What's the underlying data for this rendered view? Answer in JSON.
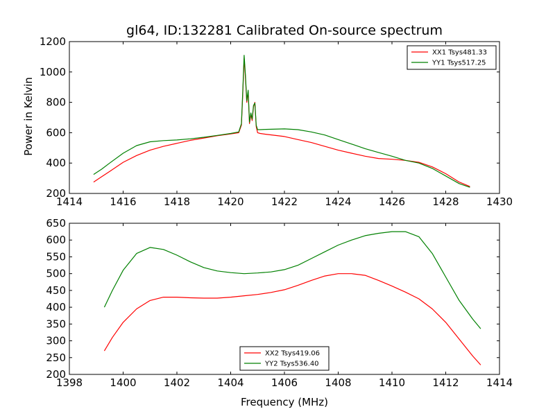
{
  "title": "gl64, ID:132281 Calibrated On-source spectrum",
  "chart_data": [
    {
      "type": "line",
      "ylabel": "Power in Kelvin",
      "xlabel": "",
      "xlim": [
        1414,
        1430
      ],
      "ylim": [
        200,
        1200
      ],
      "xticks": [
        "1414",
        "1416",
        "1418",
        "1420",
        "1422",
        "1424",
        "1426",
        "1428",
        "1430"
      ],
      "yticks": [
        "200",
        "400",
        "600",
        "800",
        "1000",
        "1200"
      ],
      "legend_position": "top-right",
      "series": [
        {
          "name": "XX1 Tsys481.33",
          "color": "#ff0000",
          "x": [
            1414.9,
            1415.2,
            1415.5,
            1416.0,
            1416.5,
            1417.0,
            1417.5,
            1418.0,
            1418.5,
            1419.0,
            1419.5,
            1420.0,
            1420.3,
            1420.4,
            1420.45,
            1420.5,
            1420.55,
            1420.6,
            1420.65,
            1420.7,
            1420.75,
            1420.8,
            1420.85,
            1420.9,
            1420.95,
            1421.0,
            1421.1,
            1421.3,
            1422.0,
            1422.5,
            1423.0,
            1423.5,
            1424.0,
            1424.5,
            1425.0,
            1425.5,
            1426.0,
            1426.5,
            1427.0,
            1427.5,
            1428.0,
            1428.5,
            1428.9
          ],
          "y": [
            275,
            310,
            345,
            405,
            450,
            485,
            510,
            530,
            550,
            565,
            580,
            592,
            600,
            650,
            850,
            1090,
            960,
            800,
            870,
            660,
            720,
            680,
            770,
            800,
            640,
            600,
            595,
            590,
            575,
            555,
            535,
            510,
            485,
            465,
            445,
            430,
            425,
            418,
            405,
            375,
            330,
            275,
            245
          ]
        },
        {
          "name": "YY1 Tsys517.25",
          "color": "#008000",
          "x": [
            1414.9,
            1415.2,
            1415.5,
            1416.0,
            1416.5,
            1417.0,
            1417.5,
            1418.0,
            1418.5,
            1419.0,
            1419.5,
            1420.0,
            1420.3,
            1420.4,
            1420.45,
            1420.5,
            1420.55,
            1420.6,
            1420.65,
            1420.7,
            1420.75,
            1420.8,
            1420.85,
            1420.9,
            1420.95,
            1421.0,
            1421.1,
            1421.3,
            1422.0,
            1422.5,
            1423.0,
            1423.5,
            1424.0,
            1424.5,
            1425.0,
            1425.5,
            1426.0,
            1426.5,
            1427.0,
            1427.5,
            1428.0,
            1428.5,
            1428.9
          ],
          "y": [
            325,
            360,
            400,
            465,
            515,
            540,
            548,
            552,
            560,
            570,
            582,
            595,
            605,
            660,
            870,
            1110,
            980,
            810,
            880,
            670,
            730,
            690,
            780,
            795,
            650,
            620,
            620,
            622,
            625,
            620,
            605,
            585,
            555,
            525,
            495,
            470,
            445,
            418,
            400,
            365,
            315,
            265,
            240
          ]
        }
      ]
    },
    {
      "type": "line",
      "ylabel": "",
      "xlabel": "Frequency (MHz)",
      "xlim": [
        1398,
        1414
      ],
      "ylim": [
        200,
        650
      ],
      "xticks": [
        "1398",
        "1400",
        "1402",
        "1404",
        "1406",
        "1408",
        "1410",
        "1412",
        "1414"
      ],
      "yticks": [
        "200",
        "250",
        "300",
        "350",
        "400",
        "450",
        "500",
        "550",
        "600",
        "650"
      ],
      "legend_position": "bottom-center",
      "series": [
        {
          "name": "XX2 Tsys419.06",
          "color": "#ff0000",
          "x": [
            1399.3,
            1399.6,
            1400.0,
            1400.5,
            1401.0,
            1401.5,
            1402.0,
            1402.5,
            1403.0,
            1403.5,
            1404.0,
            1404.5,
            1405.0,
            1405.5,
            1406.0,
            1406.5,
            1407.0,
            1407.5,
            1408.0,
            1408.5,
            1409.0,
            1409.5,
            1410.0,
            1410.5,
            1411.0,
            1411.5,
            1412.0,
            1412.5,
            1413.0,
            1413.3
          ],
          "y": [
            270,
            310,
            355,
            395,
            420,
            430,
            430,
            428,
            427,
            427,
            430,
            434,
            438,
            444,
            452,
            465,
            480,
            493,
            500,
            500,
            495,
            480,
            463,
            445,
            425,
            395,
            355,
            305,
            255,
            228
          ]
        },
        {
          "name": "YY2 Tsys536.40",
          "color": "#008000",
          "x": [
            1399.3,
            1399.6,
            1400.0,
            1400.5,
            1401.0,
            1401.5,
            1402.0,
            1402.5,
            1403.0,
            1403.5,
            1404.0,
            1404.5,
            1405.0,
            1405.5,
            1406.0,
            1406.5,
            1407.0,
            1407.5,
            1408.0,
            1408.5,
            1409.0,
            1409.5,
            1410.0,
            1410.5,
            1411.0,
            1411.5,
            1412.0,
            1412.5,
            1413.0,
            1413.3
          ],
          "y": [
            400,
            450,
            510,
            560,
            578,
            572,
            555,
            535,
            518,
            508,
            503,
            500,
            502,
            505,
            512,
            525,
            545,
            565,
            585,
            600,
            613,
            620,
            625,
            625,
            610,
            560,
            490,
            420,
            365,
            336
          ]
        }
      ]
    }
  ]
}
